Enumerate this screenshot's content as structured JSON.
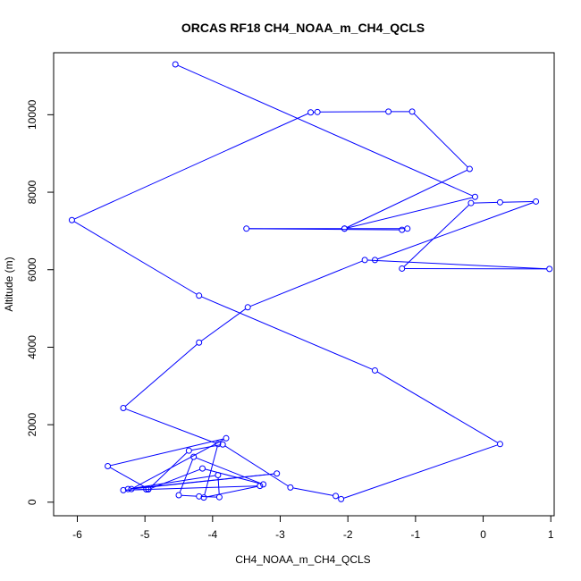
{
  "chart_data": {
    "type": "line",
    "title": "ORCAS RF18 CH4_NOAA_m_CH4_QCLS",
    "xlabel": "CH4_NOAA_m_CH4_QCLS",
    "ylabel": "Altitude (m)",
    "xlim": [
      -6.35,
      1.05
    ],
    "ylim": [
      -350,
      11600
    ],
    "x_ticks": [
      -6,
      -5,
      -4,
      -3,
      -2,
      -1,
      0,
      1
    ],
    "x_tick_labels": [
      "-6",
      "-5",
      "-4",
      "-3",
      "-2",
      "-1",
      "0",
      "1"
    ],
    "y_ticks": [
      0,
      2000,
      4000,
      6000,
      8000,
      10000
    ],
    "y_tick_labels": [
      "0",
      "2000",
      "4000",
      "6000",
      "8000",
      "10000"
    ],
    "grid": false,
    "markers": "open-circle",
    "series_color": "#0000ff",
    "points": [
      {
        "x": -4.55,
        "y": 11300
      },
      {
        "x": -0.12,
        "y": 7880
      },
      {
        "x": -2.05,
        "y": 7060
      },
      {
        "x": -1.12,
        "y": 7060
      },
      {
        "x": -1.2,
        "y": 7030
      },
      {
        "x": -3.5,
        "y": 7060
      },
      {
        "x": -2.05,
        "y": 7060
      },
      {
        "x": -0.2,
        "y": 8600
      },
      {
        "x": -1.05,
        "y": 10080
      },
      {
        "x": -1.4,
        "y": 10080
      },
      {
        "x": -2.45,
        "y": 10070
      },
      {
        "x": -2.55,
        "y": 10060
      },
      {
        "x": -6.08,
        "y": 7280
      },
      {
        "x": -4.2,
        "y": 5330
      },
      {
        "x": -1.6,
        "y": 3400
      },
      {
        "x": 0.25,
        "y": 1500
      },
      {
        "x": -2.1,
        "y": 80
      },
      {
        "x": -2.18,
        "y": 160
      },
      {
        "x": -2.85,
        "y": 380
      },
      {
        "x": -3.85,
        "y": 1490
      },
      {
        "x": -4.35,
        "y": 1330
      },
      {
        "x": -4.95,
        "y": 330
      },
      {
        "x": -4.15,
        "y": 870
      },
      {
        "x": -3.25,
        "y": 460
      },
      {
        "x": -4.28,
        "y": 1170
      },
      {
        "x": -4.5,
        "y": 180
      },
      {
        "x": -4.2,
        "y": 150
      },
      {
        "x": -3.9,
        "y": 130
      },
      {
        "x": -3.92,
        "y": 700
      },
      {
        "x": -5.25,
        "y": 340
      },
      {
        "x": -3.05,
        "y": 740
      },
      {
        "x": -5.2,
        "y": 340
      },
      {
        "x": -3.8,
        "y": 1650
      },
      {
        "x": -5.55,
        "y": 930
      },
      {
        "x": -4.95,
        "y": 340
      },
      {
        "x": -4.98,
        "y": 330
      },
      {
        "x": -5.32,
        "y": 310
      },
      {
        "x": -3.3,
        "y": 420
      },
      {
        "x": -4.13,
        "y": 120
      },
      {
        "x": -3.92,
        "y": 1500
      },
      {
        "x": -5.32,
        "y": 2430
      },
      {
        "x": -4.2,
        "y": 4120
      },
      {
        "x": -3.48,
        "y": 5030
      },
      {
        "x": -1.75,
        "y": 6250
      },
      {
        "x": 0.98,
        "y": 6020
      },
      {
        "x": -1.2,
        "y": 6030
      },
      {
        "x": -0.18,
        "y": 7720
      },
      {
        "x": 0.25,
        "y": 7740
      },
      {
        "x": 0.78,
        "y": 7760
      },
      {
        "x": -1.6,
        "y": 6250
      }
    ]
  }
}
